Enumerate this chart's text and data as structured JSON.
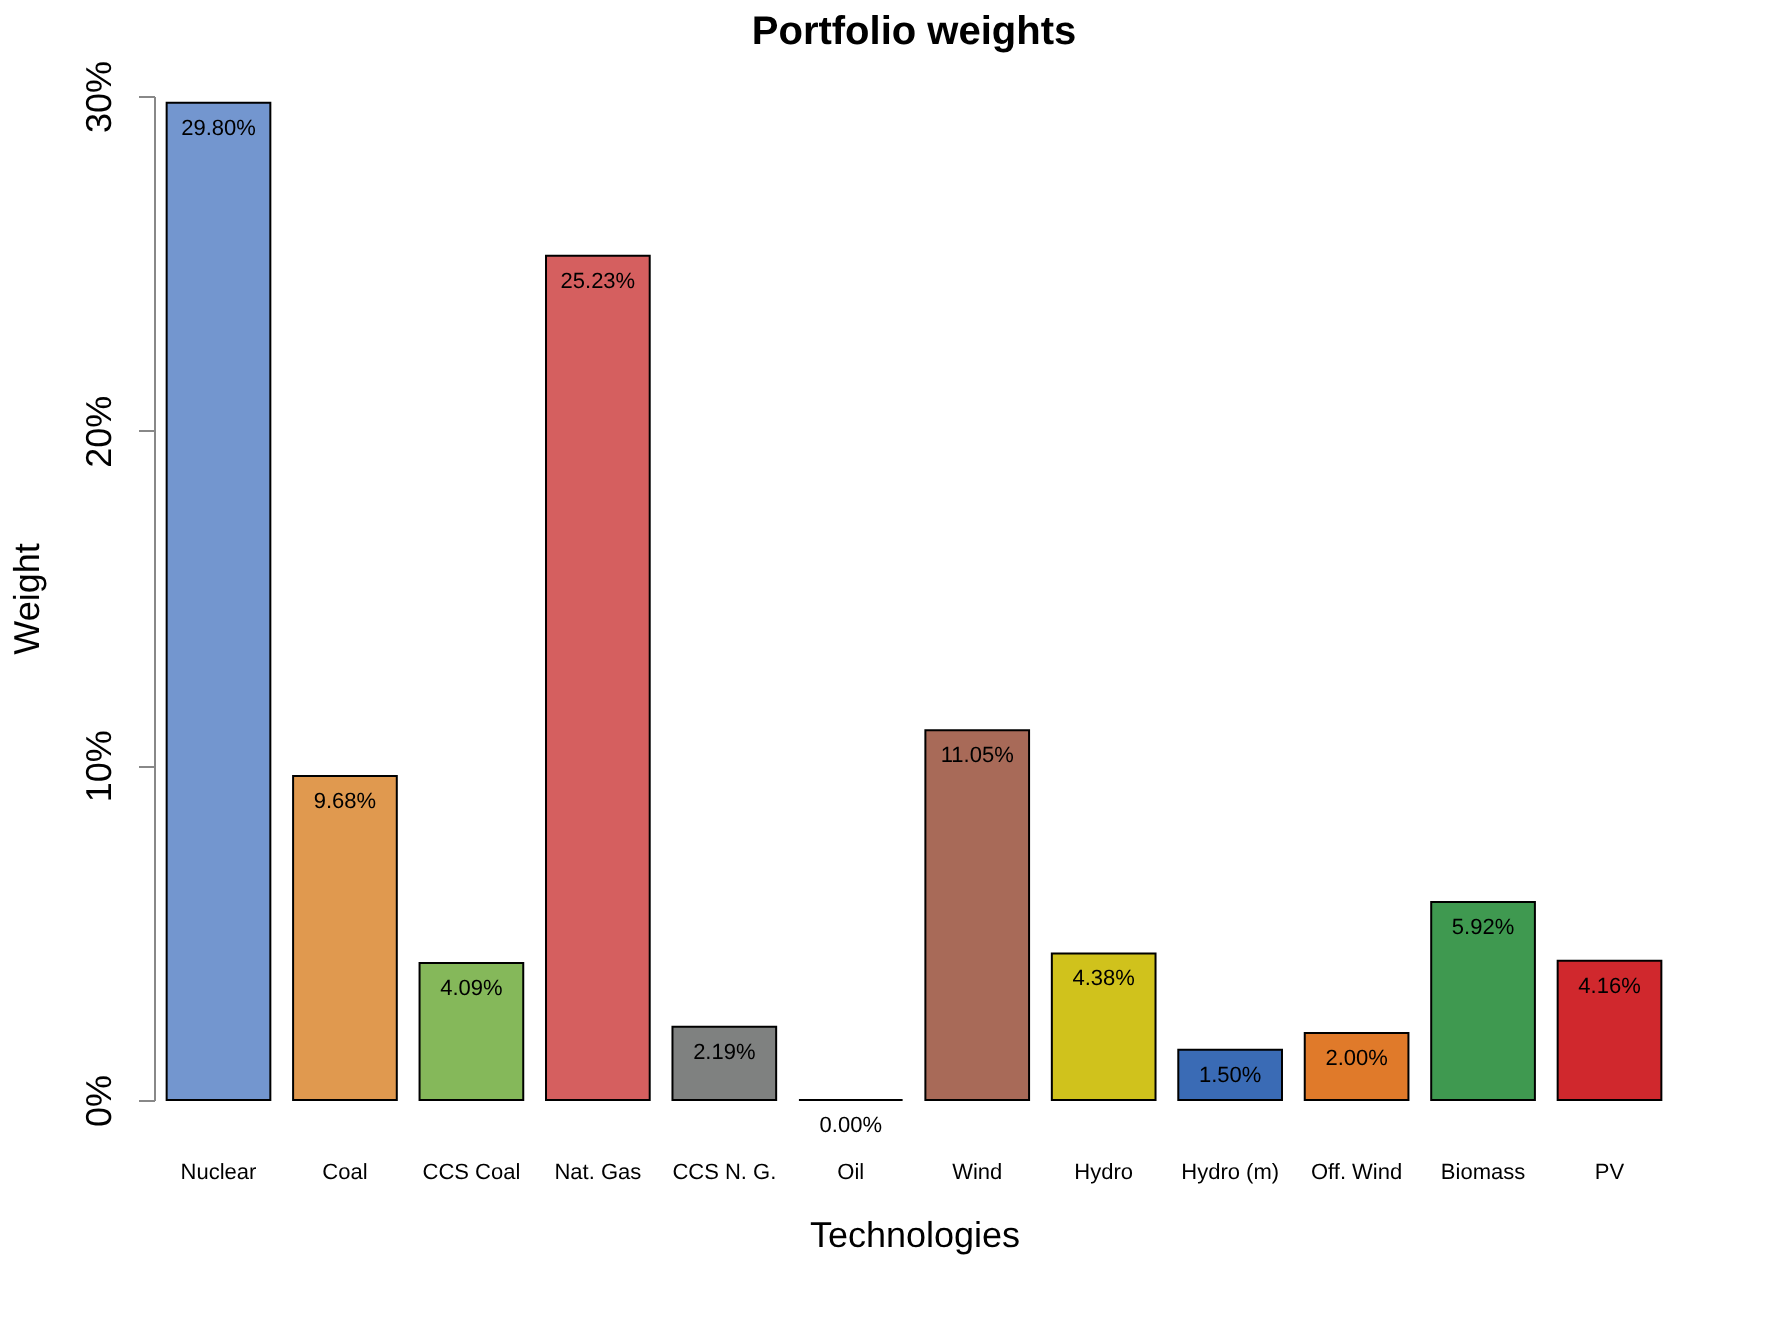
{
  "chart_data": {
    "type": "bar",
    "title": "Portfolio weights",
    "xlabel": "Technologies",
    "ylabel": "Weight",
    "categories": [
      "Nuclear",
      "Coal",
      "CCS Coal",
      "Nat. Gas",
      "CCS N. G.",
      "Oil",
      "Wind",
      "Hydro",
      "Hydro (m)",
      "Off. Wind",
      "Biomass",
      "PV"
    ],
    "values": [
      29.8,
      9.68,
      4.09,
      25.23,
      2.19,
      0.0,
      11.05,
      4.38,
      1.5,
      2.0,
      5.92,
      4.16
    ],
    "colors": [
      "#7396cf",
      "#e0994f",
      "#85b85a",
      "#d55f5f",
      "#7f8180",
      "#000000",
      "#a86a58",
      "#d0c21c",
      "#3a6bb5",
      "#e07a2a",
      "#3f9950",
      "#d0282d"
    ],
    "value_labels": [
      "29.80%",
      "9.68%",
      "4.09%",
      "25.23%",
      "2.19%",
      "0.00%",
      "11.05%",
      "4.38%",
      "1.50%",
      "2.00%",
      "5.92%",
      "4.16%"
    ],
    "ylim": [
      0,
      30
    ],
    "yticks": [
      {
        "value": 0,
        "label": "0%"
      },
      {
        "value": 10,
        "label": "10%"
      },
      {
        "value": 20,
        "label": "20%"
      },
      {
        "value": 30,
        "label": "30%"
      }
    ],
    "grid": false
  }
}
